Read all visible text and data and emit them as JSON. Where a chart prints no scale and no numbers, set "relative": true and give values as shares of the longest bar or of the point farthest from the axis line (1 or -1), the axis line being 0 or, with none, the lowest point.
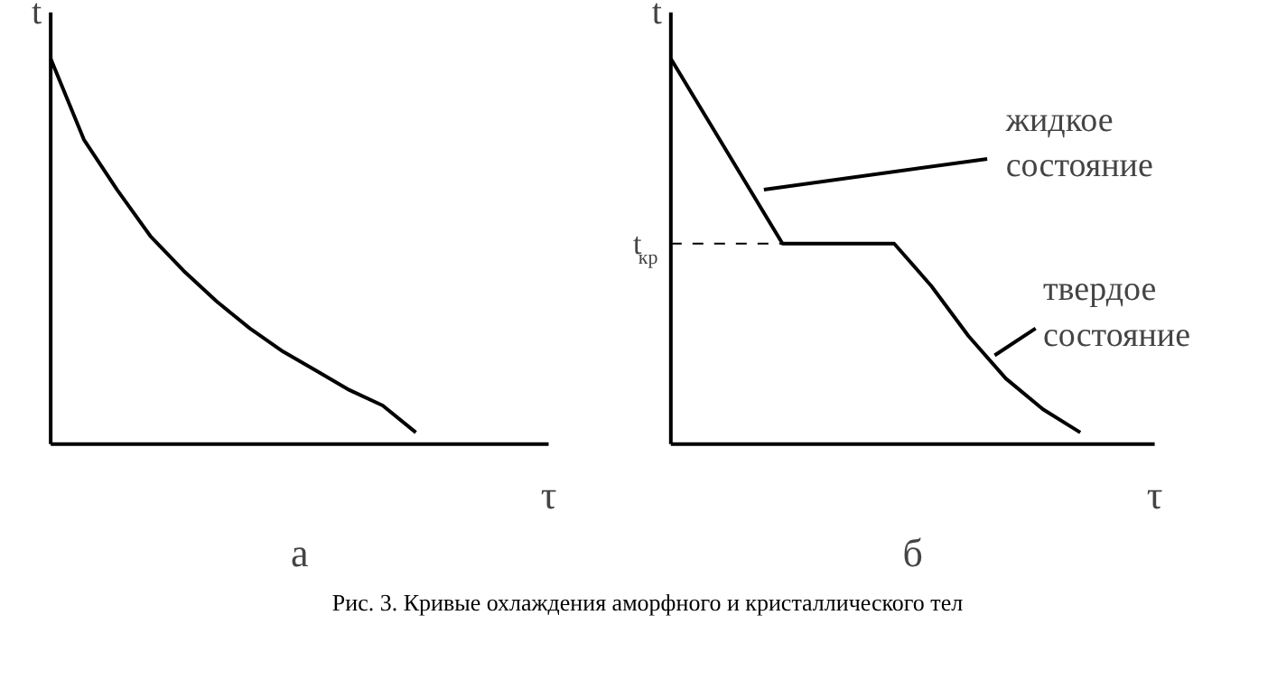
{
  "chart_data": [
    {
      "type": "line",
      "relative": true,
      "xlabel": "τ",
      "ylabel": "t",
      "grid": false,
      "marker": "none",
      "line_style": "solid",
      "categories": [
        null,
        null,
        null,
        null,
        null,
        null,
        null,
        null,
        null,
        null,
        null,
        null,
        null,
        null,
        null,
        null
      ],
      "series": [
        {
          "color": "#000000",
          "values": [
            1.0,
            0.79,
            0.66,
            0.54,
            0.45,
            0.37,
            0.3,
            0.24,
            0.19,
            0.14,
            0.1,
            0.03,
            null,
            null,
            null,
            null
          ]
        }
      ],
      "annotations": [
        "а",
        "Рис. 3. Кривые охлаждения аморфного и кристаллического тел"
      ]
    },
    {
      "type": "line",
      "relative": true,
      "xlabel": "τ",
      "ylabel": "t",
      "grid": false,
      "marker": "none",
      "line_style": "solid",
      "categories": [
        null,
        null,
        null,
        null,
        null,
        null,
        null,
        null,
        null,
        null,
        null,
        null,
        null,
        null
      ],
      "series": [
        {
          "color": "#000000",
          "values": [
            1.0,
            0.84,
            0.68,
            0.52,
            0.52,
            0.52,
            0.52,
            0.41,
            0.28,
            0.17,
            0.09,
            0.03,
            null,
            null
          ]
        }
      ],
      "ref_lines": [
        {
          "axis": "y",
          "value": 0.52,
          "label": "t$_{кр}$",
          "line_style": "dashed"
        }
      ],
      "annotations": [
        "б",
        "жидкое состояние",
        "твердое состояние"
      ]
    }
  ]
}
